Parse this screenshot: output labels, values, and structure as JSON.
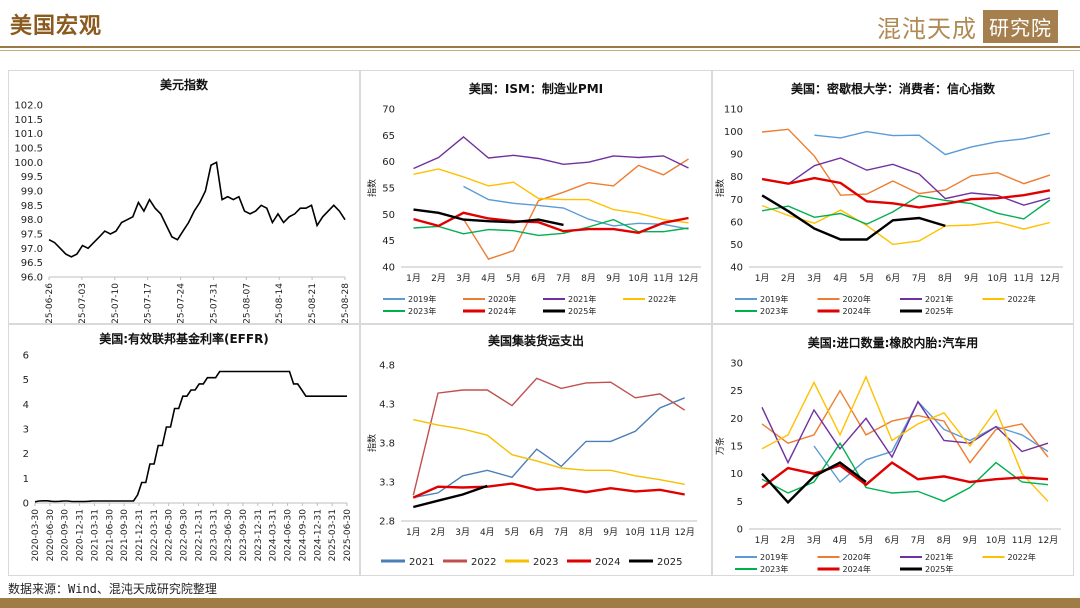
{
  "header": {
    "title": "美国宏观",
    "brand_text": "混沌天成",
    "brand_box": "研究院",
    "accent_color": "#a07c45"
  },
  "footer": {
    "source": "数据来源：Wind、混沌天成研究院整理"
  },
  "chart_data": [
    {
      "id": "usd-index",
      "type": "line",
      "title": "美元指数",
      "ylim": [
        96.0,
        102.0
      ],
      "yticks": [
        "102.0",
        "101.5",
        "101.0",
        "100.5",
        "100.0",
        "99.5",
        "99.0",
        "98.5",
        "98.0",
        "97.5",
        "97.0",
        "96.5",
        "96.0"
      ],
      "xticks": [
        "2025-06-26",
        "2025-07-03",
        "2025-07-10",
        "2025-07-17",
        "2025-07-24",
        "2025-07-31",
        "2025-08-07",
        "2025-08-14",
        "2025-08-21",
        "2025-08-28"
      ],
      "series": [
        {
          "color": "#000000",
          "values": [
            97.3,
            97.2,
            97.0,
            96.8,
            96.7,
            96.8,
            97.1,
            97.0,
            97.2,
            97.4,
            97.6,
            97.5,
            97.6,
            97.9,
            98.0,
            98.1,
            98.6,
            98.3,
            98.7,
            98.4,
            98.2,
            97.8,
            97.4,
            97.3,
            97.6,
            97.9,
            98.3,
            98.6,
            99.0,
            99.9,
            100.0,
            98.7,
            98.8,
            98.7,
            98.8,
            98.3,
            98.2,
            98.3,
            98.5,
            98.4,
            97.9,
            98.2,
            97.9,
            98.1,
            98.2,
            98.4,
            98.4,
            98.5,
            97.8,
            98.1,
            98.3,
            98.5,
            98.3,
            98.0
          ]
        }
      ]
    },
    {
      "id": "ism-pmi",
      "type": "line",
      "title": "美国：ISM：制造业PMI",
      "ylabel": "指数",
      "ylim": [
        40,
        70
      ],
      "yticks": [
        "70",
        "65",
        "60",
        "55",
        "50",
        "45",
        "40"
      ],
      "categories": [
        "1月",
        "2月",
        "3月",
        "4月",
        "5月",
        "6月",
        "7月",
        "8月",
        "9月",
        "10月",
        "11月",
        "12月"
      ],
      "series": [
        {
          "name": "2019年",
          "color": "#5b9bd5",
          "values": [
            null,
            null,
            55.3,
            52.8,
            52.1,
            51.7,
            51.2,
            49.1,
            47.8,
            48.3,
            48.1,
            47.2
          ]
        },
        {
          "name": "2020年",
          "color": "#ed7d31",
          "values": [
            null,
            null,
            49.1,
            41.5,
            43.1,
            52.6,
            54.2,
            56.0,
            55.4,
            59.3,
            57.5,
            60.5
          ]
        },
        {
          "name": "2021年",
          "color": "#7030a0",
          "values": [
            58.7,
            60.8,
            64.7,
            60.7,
            61.2,
            60.6,
            59.5,
            59.9,
            61.1,
            60.8,
            61.1,
            58.8
          ]
        },
        {
          "name": "2022年",
          "color": "#ffc000",
          "values": [
            57.6,
            58.6,
            57.1,
            55.4,
            56.1,
            53.0,
            52.8,
            52.8,
            50.9,
            50.2,
            49.0,
            48.4
          ]
        },
        {
          "name": "2023年",
          "color": "#00b050",
          "values": [
            47.4,
            47.7,
            46.3,
            47.1,
            46.9,
            46.0,
            46.4,
            47.6,
            49.0,
            46.7,
            46.7,
            47.4
          ]
        },
        {
          "name": "2024年",
          "color": "#e00000",
          "values": [
            49.1,
            47.8,
            50.3,
            49.2,
            48.7,
            48.5,
            46.8,
            47.2,
            47.2,
            46.5,
            48.4,
            49.3
          ]
        },
        {
          "name": "2025年",
          "color": "#000000",
          "values": [
            50.9,
            50.3,
            49.0,
            48.7,
            48.5,
            49.0,
            48.0,
            null,
            null,
            null,
            null,
            null
          ]
        }
      ]
    },
    {
      "id": "umich-sentiment",
      "type": "line",
      "title": "美国：密歇根大学：消费者：信心指数",
      "ylabel": "指数",
      "ylim": [
        40,
        110
      ],
      "yticks": [
        "110",
        "100",
        "90",
        "80",
        "70",
        "60",
        "50",
        "40"
      ],
      "categories": [
        "1月",
        "2月",
        "3月",
        "4月",
        "5月",
        "6月",
        "7月",
        "8月",
        "9月",
        "10月",
        "11月",
        "12月"
      ],
      "series": [
        {
          "name": "2019年",
          "color": "#5b9bd5",
          "values": [
            null,
            null,
            98.4,
            97.2,
            100.0,
            98.2,
            98.4,
            89.8,
            93.2,
            95.5,
            96.8,
            99.3
          ]
        },
        {
          "name": "2020年",
          "color": "#ed7d31",
          "values": [
            99.8,
            101.0,
            89.1,
            71.8,
            72.3,
            78.1,
            72.5,
            74.1,
            80.4,
            81.8,
            76.9,
            80.7
          ]
        },
        {
          "name": "2021年",
          "color": "#7030a0",
          "values": [
            79.0,
            76.8,
            84.9,
            88.3,
            82.9,
            85.5,
            81.2,
            70.3,
            72.8,
            71.7,
            67.4,
            70.6
          ]
        },
        {
          "name": "2022年",
          "color": "#ffc000",
          "values": [
            67.2,
            62.8,
            59.4,
            65.2,
            58.4,
            50.0,
            51.5,
            58.2,
            58.6,
            59.9,
            56.8,
            59.7
          ]
        },
        {
          "name": "2023年",
          "color": "#00b050",
          "values": [
            64.9,
            67.0,
            62.0,
            63.7,
            59.0,
            64.4,
            71.6,
            69.5,
            68.1,
            63.8,
            61.3,
            69.7
          ]
        },
        {
          "name": "2024年",
          "color": "#e00000",
          "values": [
            79.0,
            76.9,
            79.4,
            77.2,
            69.1,
            68.2,
            66.4,
            67.9,
            70.1,
            70.5,
            71.8,
            74.0
          ]
        },
        {
          "name": "2025年",
          "color": "#000000",
          "values": [
            71.7,
            64.7,
            57.0,
            52.2,
            52.2,
            60.7,
            61.7,
            58.2,
            null,
            null,
            null,
            null
          ]
        }
      ]
    },
    {
      "id": "effr",
      "type": "line",
      "title": "美国:有效联邦基金利率(EFFR)",
      "ylim": [
        0,
        6
      ],
      "yticks": [
        "6",
        "5",
        "4",
        "3",
        "2",
        "1",
        "0"
      ],
      "xticks": [
        "2020-03-30",
        "2020-06-30",
        "2020-09-30",
        "2020-12-31",
        "2021-03-31",
        "2021-06-30",
        "2021-09-30",
        "2021-12-31",
        "2022-03-31",
        "2022-06-30",
        "2022-09-30",
        "2022-12-31",
        "2023-03-31",
        "2023-06-30",
        "2023-09-30",
        "2023-12-31",
        "2024-03-31",
        "2024-06-30",
        "2024-09-30",
        "2024-12-31",
        "2025-03-31",
        "2025-06-30"
      ],
      "series": [
        {
          "color": "#000000",
          "values": [
            0.05,
            0.08,
            0.09,
            0.09,
            0.07,
            0.06,
            0.07,
            0.08,
            0.08,
            0.06,
            0.06,
            0.06,
            0.06,
            0.07,
            0.08,
            0.08,
            0.08,
            0.08,
            0.08,
            0.08,
            0.08,
            0.08,
            0.08,
            0.08,
            0.08,
            0.33,
            0.83,
            0.83,
            1.58,
            1.58,
            2.33,
            2.33,
            3.08,
            3.08,
            3.83,
            3.83,
            4.33,
            4.33,
            4.58,
            4.58,
            4.83,
            4.83,
            5.08,
            5.08,
            5.08,
            5.33,
            5.33,
            5.33,
            5.33,
            5.33,
            5.33,
            5.33,
            5.33,
            5.33,
            5.33,
            5.33,
            5.33,
            5.33,
            5.33,
            5.33,
            5.33,
            5.33,
            5.33,
            4.83,
            4.83,
            4.58,
            4.33,
            4.33,
            4.33,
            4.33,
            4.33,
            4.33,
            4.33,
            4.33,
            4.33,
            4.33,
            4.33
          ]
        }
      ]
    },
    {
      "id": "container-freight",
      "type": "line",
      "title": "美国集装货运支出",
      "ylabel": "指数",
      "ylim": [
        2.8,
        4.8
      ],
      "yticks": [
        "4.8",
        "4.3",
        "3.8",
        "3.3",
        "2.8"
      ],
      "categories": [
        "1月",
        "2月",
        "3月",
        "4月",
        "5月",
        "6月",
        "7月",
        "8月",
        "9月",
        "10月",
        "11月",
        "12月"
      ],
      "series": [
        {
          "name": "2021",
          "color": "#4a7eb5",
          "values": [
            3.1,
            3.16,
            3.38,
            3.45,
            3.36,
            3.72,
            3.5,
            3.82,
            3.82,
            3.95,
            4.25,
            4.38
          ]
        },
        {
          "name": "2022",
          "color": "#c0504d",
          "values": [
            3.13,
            4.44,
            4.48,
            4.48,
            4.28,
            4.63,
            4.5,
            4.57,
            4.58,
            4.38,
            4.43,
            4.22
          ]
        },
        {
          "name": "2023",
          "color": "#f5c000",
          "values": [
            4.1,
            4.03,
            3.98,
            3.9,
            3.65,
            3.57,
            3.48,
            3.45,
            3.45,
            3.38,
            3.33,
            3.27
          ]
        },
        {
          "name": "2024",
          "color": "#e00000",
          "values": [
            3.1,
            3.24,
            3.23,
            3.24,
            3.28,
            3.2,
            3.22,
            3.17,
            3.22,
            3.18,
            3.2,
            3.14
          ]
        },
        {
          "name": "2025",
          "color": "#000000",
          "values": [
            2.98,
            3.06,
            3.14,
            3.25,
            null,
            null,
            null,
            null,
            null,
            null,
            null,
            null
          ]
        }
      ]
    },
    {
      "id": "tire-imports",
      "type": "line",
      "title": "美国:进口数量:橡胶内胎:汽车用",
      "ylabel": "万条",
      "ylim": [
        0,
        30
      ],
      "yticks": [
        "30",
        "25",
        "20",
        "15",
        "10",
        "5",
        "0"
      ],
      "categories": [
        "1月",
        "2月",
        "3月",
        "4月",
        "5月",
        "6月",
        "7月",
        "8月",
        "9月",
        "10月",
        "11月",
        "12月"
      ],
      "series": [
        {
          "name": "2019年",
          "color": "#5b9bd5",
          "values": [
            null,
            null,
            15.0,
            8.5,
            12.5,
            14.0,
            23.0,
            18.0,
            16.0,
            18.5,
            17.0,
            14.0
          ]
        },
        {
          "name": "2020年",
          "color": "#ed7d31",
          "values": [
            19.0,
            15.5,
            17.0,
            25.0,
            17.0,
            19.5,
            20.5,
            19.5,
            12.0,
            18.0,
            19.0,
            13.0
          ]
        },
        {
          "name": "2021年",
          "color": "#7030a0",
          "values": [
            22.0,
            12.0,
            21.5,
            14.5,
            20.0,
            13.0,
            23.0,
            16.0,
            15.5,
            18.5,
            14.0,
            15.5
          ]
        },
        {
          "name": "2022年",
          "color": "#ffc000",
          "values": [
            14.5,
            17.0,
            26.5,
            17.0,
            27.5,
            16.0,
            19.0,
            21.0,
            15.0,
            21.5,
            10.0,
            5.0
          ]
        },
        {
          "name": "2023年",
          "color": "#00b050",
          "values": [
            9.0,
            6.5,
            8.5,
            15.5,
            7.5,
            6.5,
            6.8,
            5.0,
            7.5,
            12.0,
            8.5,
            8.0
          ]
        },
        {
          "name": "2024年",
          "color": "#e00000",
          "values": [
            7.5,
            11.0,
            10.0,
            11.5,
            8.0,
            12.0,
            9.0,
            9.5,
            8.5,
            9.0,
            9.3,
            9.0
          ]
        },
        {
          "name": "2025年",
          "color": "#000000",
          "values": [
            10.0,
            4.8,
            9.5,
            12.0,
            8.5,
            null,
            null,
            null,
            null,
            null,
            null,
            null
          ]
        }
      ]
    }
  ]
}
